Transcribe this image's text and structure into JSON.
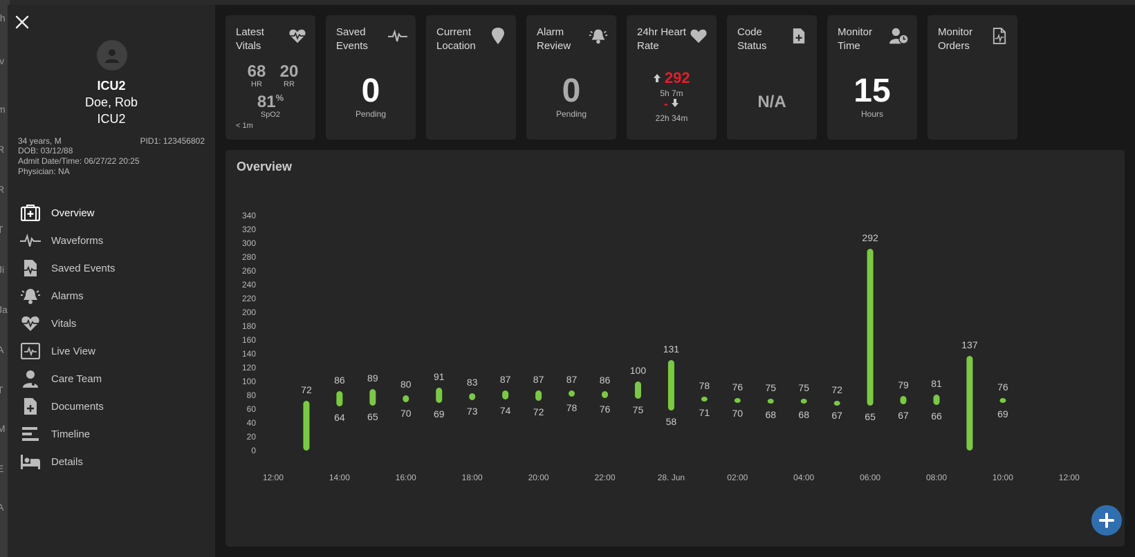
{
  "background_list": [
    "th",
    "iv",
    "m",
    "R",
    "R",
    "T",
    "Ji",
    "Ja",
    "A",
    "T",
    "M",
    "E",
    "A"
  ],
  "patient": {
    "unit": "ICU2",
    "name": "Doe, Rob",
    "location": "ICU2",
    "age_sex": "34 years, M",
    "pid": "PID1: 123456802",
    "dob": "DOB: 03/12/88",
    "admit": "Admit Date/Time: 06/27/22 20:25",
    "physician": "Physician: NA"
  },
  "nav": [
    {
      "label": "Overview",
      "icon": "medical-kit-icon",
      "active": true
    },
    {
      "label": "Waveforms",
      "icon": "waveform-icon"
    },
    {
      "label": "Saved Events",
      "icon": "saved-document-icon"
    },
    {
      "label": "Alarms",
      "icon": "bell-icon"
    },
    {
      "label": "Vitals",
      "icon": "heart-pulse-icon"
    },
    {
      "label": "Live View",
      "icon": "monitor-icon"
    },
    {
      "label": "Care Team",
      "icon": "doctor-icon"
    },
    {
      "label": "Documents",
      "icon": "document-plus-icon"
    },
    {
      "label": "Timeline",
      "icon": "timeline-icon"
    },
    {
      "label": "Details",
      "icon": "bed-icon"
    }
  ],
  "cards": {
    "vitals": {
      "title": "Latest Vitals",
      "hr": "68",
      "hr_label": "HR",
      "rr": "20",
      "rr_label": "RR",
      "spo2": "81",
      "spo2_unit": "%",
      "spo2_label": "SpO2",
      "age": "< 1m"
    },
    "saved": {
      "title": "Saved Events",
      "value": "0",
      "label": "Pending"
    },
    "location": {
      "title": "Current Location"
    },
    "alarm": {
      "title": "Alarm Review",
      "value": "0",
      "label": "Pending"
    },
    "hr24": {
      "title": "24hr Heart Rate",
      "max": "292",
      "max_ago": "5h 7m",
      "min": "-",
      "min_ago": "22h 34m"
    },
    "code": {
      "title": "Code Status",
      "value": "N/A"
    },
    "time": {
      "title": "Monitor Time",
      "value": "15",
      "label": "Hours"
    },
    "orders": {
      "title": "Monitor Orders"
    }
  },
  "overview": {
    "title": "Overview"
  },
  "colors": {
    "bar": "#7ac943",
    "alert": "#e0202a",
    "fab": "#2f6fb0"
  },
  "chart_data": {
    "type": "bar",
    "title": "Overview",
    "ylim": [
      0,
      340
    ],
    "y_ticks": [
      0,
      20,
      40,
      60,
      80,
      100,
      120,
      140,
      160,
      180,
      200,
      220,
      240,
      260,
      280,
      300,
      320,
      340
    ],
    "x_ticks": [
      "12:00",
      "14:00",
      "16:00",
      "18:00",
      "20:00",
      "22:00",
      "28. Jun",
      "02:00",
      "04:00",
      "06:00",
      "08:00",
      "10:00",
      "12:00"
    ],
    "x_tick_hours": [
      0,
      2,
      4,
      6,
      8,
      10,
      12,
      14,
      16,
      18,
      20,
      22,
      24
    ],
    "series": [
      {
        "hours": [
          1,
          2,
          3,
          4,
          5,
          6,
          7,
          8,
          9,
          10,
          11,
          12,
          13,
          14,
          15,
          16,
          17,
          18,
          19,
          20,
          21,
          22
        ],
        "high": [
          72,
          86,
          89,
          80,
          91,
          83,
          87,
          87,
          87,
          86,
          100,
          131,
          78,
          76,
          75,
          75,
          72,
          292,
          79,
          81,
          137,
          76
        ],
        "low": [
          null,
          64,
          65,
          70,
          69,
          73,
          74,
          72,
          78,
          76,
          75,
          58,
          71,
          70,
          68,
          68,
          67,
          65,
          67,
          66,
          null,
          69
        ],
        "low_shown": [
          0,
          64,
          65,
          70,
          69,
          73,
          74,
          72,
          78,
          76,
          75,
          58,
          71,
          70,
          68,
          68,
          67,
          65,
          67,
          66,
          0,
          69
        ]
      }
    ]
  },
  "fab": {
    "label": "+"
  }
}
